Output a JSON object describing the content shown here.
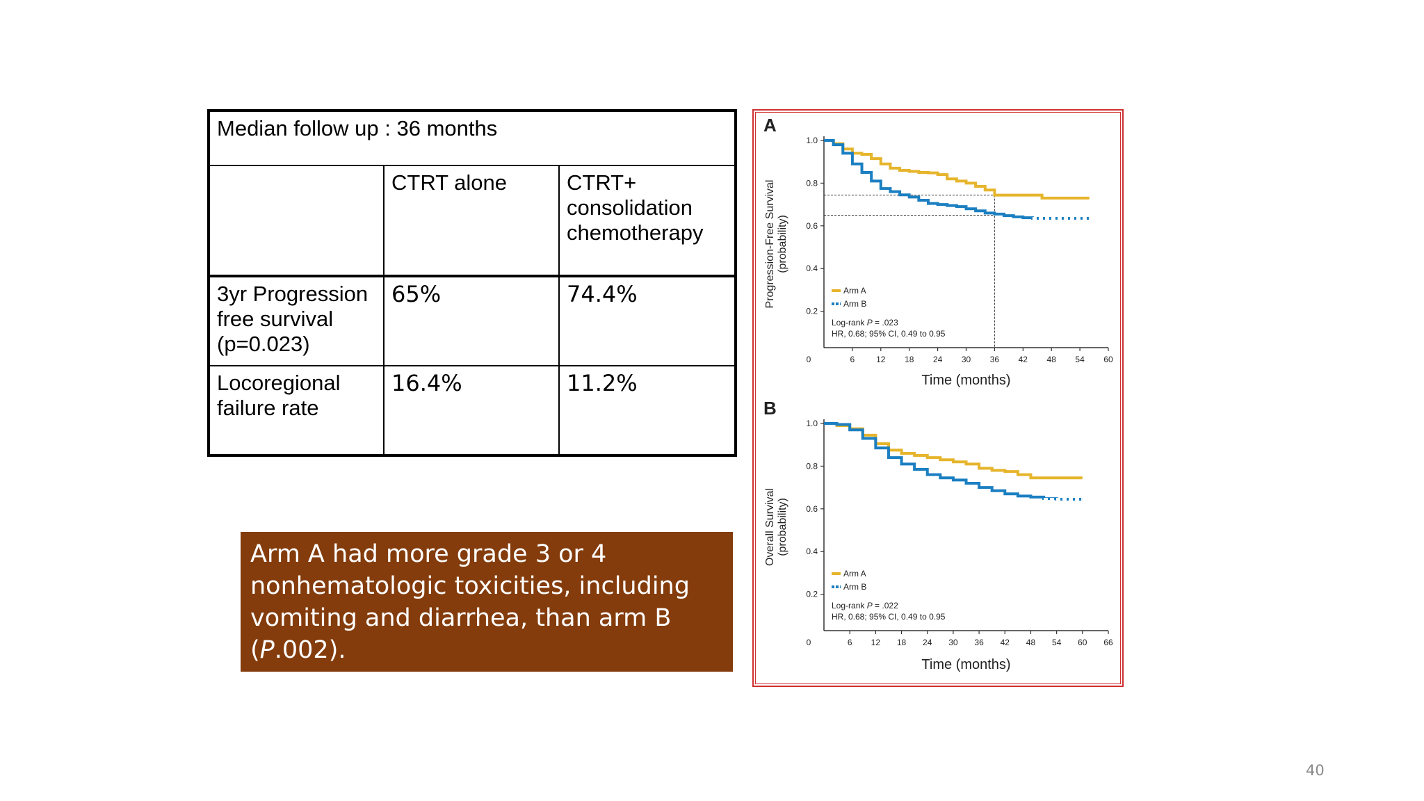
{
  "table": {
    "header": "Median follow up : 36 months",
    "columns": [
      "",
      "CTRT alone",
      [
        "CTRT+",
        "consolidation",
        "chemotherapy"
      ]
    ],
    "rows": [
      {
        "label": [
          "3yr Progression",
          "free survival",
          "(p=0.023)"
        ],
        "ctrt_alone": "65%",
        "ctrt_consolidation": "74.4%"
      },
      {
        "label": [
          "Locoregional",
          "failure rate"
        ],
        "ctrt_alone": "16.4%",
        "ctrt_consolidation": "11.2%"
      }
    ]
  },
  "note": {
    "lines": [
      "Arm A had more grade 3 or 4",
      "nonhematologic toxicities, including",
      "vomiting and diarrhea, than arm B"
    ],
    "last_open": "(",
    "last_italic": "P",
    "last_rest": ".002)."
  },
  "colors": {
    "arm_a": "#e6b52c",
    "arm_b": "#1b7fc1",
    "note_bg": "#843c0c",
    "frame": "#d03030"
  },
  "chart_data": [
    {
      "type": "line",
      "panel": "A",
      "ylabel": [
        "Progression-Free Survival",
        "(probability)"
      ],
      "xlabel": "Time (months)",
      "xlim": [
        0,
        60
      ],
      "ylim": [
        0,
        1.0
      ],
      "xticks": [
        6,
        12,
        18,
        24,
        30,
        36,
        42,
        48,
        54,
        60
      ],
      "yticks": [
        0.2,
        0.4,
        0.6,
        0.8,
        1.0
      ],
      "ytick_labels": [
        "0.2",
        "0.4",
        "0.6",
        "0.8",
        "1.0"
      ],
      "zero_label": "0",
      "legend": [
        "Arm A",
        "Arm B"
      ],
      "stat": {
        "logrank_prefix": "Log-rank ",
        "logrank_p": "P",
        "logrank_value": " = .023",
        "hr": "HR, 0.68; 95% CI, 0.49 to 0.95"
      },
      "reference": {
        "x": 36,
        "y": [
          0.744,
          0.65
        ]
      },
      "series": [
        {
          "name": "Arm A",
          "x": [
            0,
            2,
            4,
            6,
            8,
            10,
            12,
            14,
            16,
            18,
            20,
            22,
            24,
            26,
            28,
            30,
            32,
            34,
            36,
            40,
            44,
            46,
            48,
            52,
            56
          ],
          "y": [
            1.0,
            0.985,
            0.96,
            0.94,
            0.935,
            0.915,
            0.89,
            0.87,
            0.86,
            0.855,
            0.85,
            0.848,
            0.84,
            0.82,
            0.81,
            0.8,
            0.785,
            0.768,
            0.744,
            0.744,
            0.744,
            0.73,
            0.73,
            0.73,
            0.73
          ]
        },
        {
          "name": "Arm B",
          "x": [
            0,
            2,
            4,
            6,
            8,
            10,
            12,
            14,
            16,
            18,
            20,
            22,
            24,
            26,
            28,
            30,
            32,
            34,
            36,
            38,
            40,
            42,
            44,
            48,
            52,
            56
          ],
          "y": [
            1.0,
            0.98,
            0.94,
            0.89,
            0.85,
            0.81,
            0.775,
            0.76,
            0.745,
            0.735,
            0.72,
            0.705,
            0.7,
            0.695,
            0.69,
            0.68,
            0.67,
            0.66,
            0.655,
            0.648,
            0.642,
            0.638,
            0.635,
            0.635,
            0.635,
            0.635
          ]
        }
      ]
    },
    {
      "type": "line",
      "panel": "B",
      "ylabel": [
        "Overall Survival",
        "(probability)"
      ],
      "xlabel": "Time (months)",
      "xlim": [
        0,
        66
      ],
      "ylim": [
        0,
        1.0
      ],
      "xticks": [
        6,
        12,
        18,
        24,
        30,
        36,
        42,
        48,
        54,
        60,
        66
      ],
      "yticks": [
        0.2,
        0.4,
        0.6,
        0.8,
        1.0
      ],
      "ytick_labels": [
        "0.2",
        "0.4",
        "0.6",
        "0.8",
        "1.0"
      ],
      "zero_label": "0",
      "legend": [
        "Arm A",
        "Arm B"
      ],
      "stat": {
        "logrank_prefix": "Log-rank ",
        "logrank_p": "P",
        "logrank_value": " = .022",
        "hr": "HR, 0.68; 95% CI, 0.49 to 0.95"
      },
      "series": [
        {
          "name": "Arm A",
          "x": [
            0,
            3,
            6,
            9,
            12,
            15,
            18,
            21,
            24,
            27,
            30,
            33,
            36,
            39,
            42,
            45,
            48,
            51,
            54,
            57,
            60
          ],
          "y": [
            1.0,
            0.99,
            0.975,
            0.945,
            0.905,
            0.875,
            0.86,
            0.85,
            0.84,
            0.83,
            0.82,
            0.81,
            0.79,
            0.78,
            0.775,
            0.76,
            0.745,
            0.745,
            0.745,
            0.745,
            0.745
          ]
        },
        {
          "name": "Arm B",
          "x": [
            0,
            3,
            6,
            9,
            12,
            15,
            18,
            21,
            24,
            27,
            30,
            33,
            36,
            39,
            42,
            45,
            48,
            51,
            54,
            57,
            60
          ],
          "y": [
            1.0,
            0.995,
            0.97,
            0.93,
            0.885,
            0.84,
            0.81,
            0.785,
            0.76,
            0.745,
            0.735,
            0.72,
            0.7,
            0.685,
            0.67,
            0.66,
            0.655,
            0.648,
            0.645,
            0.645,
            0.645
          ]
        }
      ]
    }
  ],
  "page_number": "40"
}
